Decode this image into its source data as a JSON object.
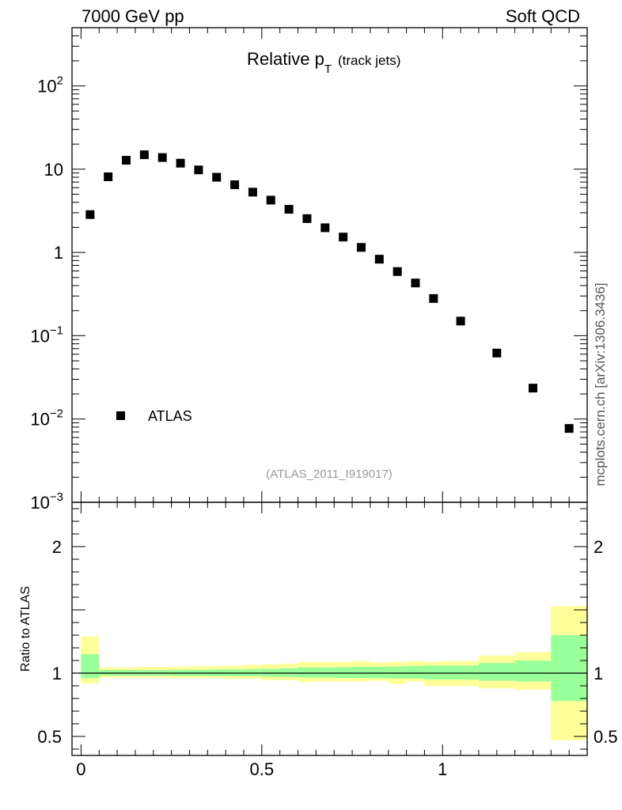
{
  "header": {
    "left": "7000 GeV pp",
    "right": "Soft QCD"
  },
  "side_label": "mcplots.cern.ch [arXiv:1306.3436]",
  "chart_data": [
    {
      "type": "scatter",
      "title": "Relative p_T (track jets)",
      "title_main": "Relative p",
      "title_sub": "T",
      "title_paren": "(track jets)",
      "yscale": "log",
      "ylim": [
        0.001,
        500
      ],
      "xlim": [
        -0.025,
        1.4
      ],
      "yticks": [
        {
          "v": 100,
          "base": "10",
          "exp": "2"
        },
        {
          "v": 10,
          "base": "10",
          "exp": ""
        },
        {
          "v": 1,
          "base": "1",
          "exp": ""
        },
        {
          "v": 0.1,
          "base": "10",
          "exp": "−1"
        },
        {
          "v": 0.01,
          "base": "10",
          "exp": "−2"
        },
        {
          "v": 0.001,
          "base": "10",
          "exp": "−3"
        }
      ],
      "legend": [
        {
          "name": "ATLAS",
          "marker": "square"
        }
      ],
      "legend_position": "bottom-left",
      "reference": "(ATLAS_2011_I919017)",
      "series": [
        {
          "name": "ATLAS",
          "x": [
            0.025,
            0.075,
            0.125,
            0.175,
            0.225,
            0.275,
            0.325,
            0.375,
            0.425,
            0.475,
            0.525,
            0.575,
            0.625,
            0.675,
            0.725,
            0.775,
            0.825,
            0.875,
            0.925,
            0.975,
            1.05,
            1.15,
            1.25,
            1.35
          ],
          "y": [
            2.85,
            8.1,
            12.8,
            14.9,
            13.8,
            11.8,
            9.8,
            8.0,
            6.5,
            5.3,
            4.25,
            3.3,
            2.55,
            1.98,
            1.53,
            1.15,
            0.83,
            0.59,
            0.43,
            0.28,
            0.15,
            0.062,
            0.0235,
            0.0077
          ]
        }
      ]
    },
    {
      "type": "area",
      "ylabel": "Ratio to ATLAS",
      "ylim": [
        0.35,
        2.35
      ],
      "xlim": [
        -0.025,
        1.4
      ],
      "xticks": [
        "0",
        "0.5",
        "1"
      ],
      "xtick_values": [
        0,
        0.5,
        1
      ],
      "yticks": [
        "2",
        "1",
        "0.5"
      ],
      "ytick_values": [
        2,
        1,
        0.5
      ],
      "reference_line": 1,
      "colors": {
        "total_band": "#ffff99",
        "stat_band": "#99ff99"
      },
      "bins": [
        {
          "lo": 0.0,
          "hi": 0.05,
          "yellow": [
            0.92,
            1.29
          ],
          "green": [
            0.96,
            1.15
          ]
        },
        {
          "lo": 0.05,
          "hi": 0.1,
          "yellow": [
            0.965,
            1.045
          ],
          "green": [
            0.98,
            1.025
          ]
        },
        {
          "lo": 0.1,
          "hi": 0.15,
          "yellow": [
            0.965,
            1.045
          ],
          "green": [
            0.98,
            1.025
          ]
        },
        {
          "lo": 0.15,
          "hi": 0.2,
          "yellow": [
            0.965,
            1.05
          ],
          "green": [
            0.98,
            1.025
          ]
        },
        {
          "lo": 0.2,
          "hi": 0.25,
          "yellow": [
            0.965,
            1.05
          ],
          "green": [
            0.98,
            1.025
          ]
        },
        {
          "lo": 0.25,
          "hi": 0.3,
          "yellow": [
            0.96,
            1.05
          ],
          "green": [
            0.978,
            1.027
          ]
        },
        {
          "lo": 0.3,
          "hi": 0.35,
          "yellow": [
            0.96,
            1.055
          ],
          "green": [
            0.978,
            1.027
          ]
        },
        {
          "lo": 0.35,
          "hi": 0.4,
          "yellow": [
            0.96,
            1.055
          ],
          "green": [
            0.976,
            1.03
          ]
        },
        {
          "lo": 0.4,
          "hi": 0.45,
          "yellow": [
            0.955,
            1.06
          ],
          "green": [
            0.975,
            1.03
          ]
        },
        {
          "lo": 0.45,
          "hi": 0.5,
          "yellow": [
            0.955,
            1.065
          ],
          "green": [
            0.975,
            1.032
          ]
        },
        {
          "lo": 0.5,
          "hi": 0.55,
          "yellow": [
            0.945,
            1.07
          ],
          "green": [
            0.972,
            1.035
          ]
        },
        {
          "lo": 0.55,
          "hi": 0.6,
          "yellow": [
            0.945,
            1.075
          ],
          "green": [
            0.97,
            1.038
          ]
        },
        {
          "lo": 0.6,
          "hi": 0.65,
          "yellow": [
            0.93,
            1.09
          ],
          "green": [
            0.965,
            1.045
          ]
        },
        {
          "lo": 0.65,
          "hi": 0.7,
          "yellow": [
            0.935,
            1.09
          ],
          "green": [
            0.965,
            1.045
          ]
        },
        {
          "lo": 0.7,
          "hi": 0.75,
          "yellow": [
            0.935,
            1.09
          ],
          "green": [
            0.963,
            1.048
          ]
        },
        {
          "lo": 0.75,
          "hi": 0.8,
          "yellow": [
            0.935,
            1.095
          ],
          "green": [
            0.962,
            1.05
          ]
        },
        {
          "lo": 0.8,
          "hi": 0.85,
          "yellow": [
            0.94,
            1.085
          ],
          "green": [
            0.96,
            1.05
          ]
        },
        {
          "lo": 0.85,
          "hi": 0.9,
          "yellow": [
            0.915,
            1.09
          ],
          "green": [
            0.958,
            1.052
          ]
        },
        {
          "lo": 0.9,
          "hi": 0.95,
          "yellow": [
            0.935,
            1.095
          ],
          "green": [
            0.958,
            1.055
          ]
        },
        {
          "lo": 0.95,
          "hi": 1.0,
          "yellow": [
            0.9,
            1.09
          ],
          "green": [
            0.95,
            1.06
          ]
        },
        {
          "lo": 1.0,
          "hi": 1.1,
          "yellow": [
            0.9,
            1.095
          ],
          "green": [
            0.95,
            1.06
          ]
        },
        {
          "lo": 1.1,
          "hi": 1.2,
          "yellow": [
            0.88,
            1.14
          ],
          "green": [
            0.94,
            1.08
          ]
        },
        {
          "lo": 1.2,
          "hi": 1.3,
          "yellow": [
            0.87,
            1.165
          ],
          "green": [
            0.935,
            1.1
          ]
        },
        {
          "lo": 1.3,
          "hi": 1.4,
          "yellow": [
            0.47,
            1.53
          ],
          "green": [
            0.78,
            1.3
          ]
        }
      ]
    }
  ]
}
